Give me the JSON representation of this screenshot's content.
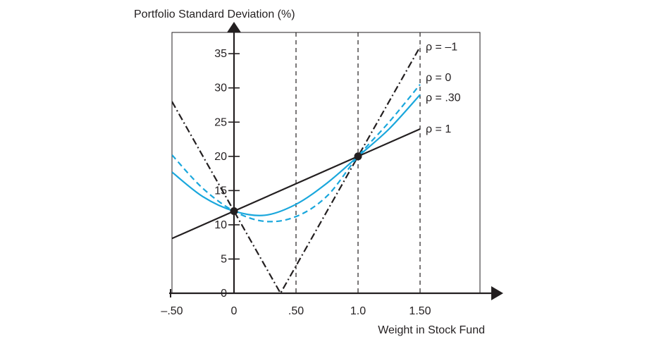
{
  "chart_data": {
    "type": "line",
    "ylabel": "Portfolio Standard Deviation (%)",
    "xlabel": "Weight in Stock Fund",
    "xlim": [
      -0.5,
      2.0
    ],
    "ylim": [
      0,
      40
    ],
    "x_ticks": [
      {
        "value": -0.5,
        "label": "–.50"
      },
      {
        "value": 0,
        "label": "0"
      },
      {
        "value": 0.5,
        "label": ".50"
      },
      {
        "value": 1.0,
        "label": "1.0"
      },
      {
        "value": 1.5,
        "label": "1.50"
      }
    ],
    "y_ticks": [
      {
        "value": 0,
        "label": "0"
      },
      {
        "value": 5,
        "label": "5"
      },
      {
        "value": 10,
        "label": "10"
      },
      {
        "value": 15,
        "label": "15"
      },
      {
        "value": 20,
        "label": "20"
      },
      {
        "value": 25,
        "label": "25"
      },
      {
        "value": 30,
        "label": "30"
      },
      {
        "value": 35,
        "label": "35"
      }
    ],
    "vertical_reference_lines": [
      0.5,
      1.0,
      1.5
    ],
    "grid": false,
    "series": [
      {
        "name": "ρ = –1",
        "color": "#231f20",
        "style": "dash-dot",
        "x": [
          -0.5,
          -0.25,
          0,
          0.25,
          0.375,
          0.5,
          0.75,
          1.0,
          1.25,
          1.5
        ],
        "y": [
          28,
          20,
          12,
          4,
          0,
          4,
          12,
          20,
          28,
          36
        ]
      },
      {
        "name": "ρ = 0",
        "color": "#1aa7dc",
        "style": "dashed",
        "x": [
          -0.5,
          -0.25,
          0,
          0.25,
          0.5,
          0.75,
          1.0,
          1.25,
          1.5
        ],
        "y": [
          20.2,
          15.3,
          12,
          10.5,
          11.2,
          14.2,
          20,
          25,
          30.5
        ]
      },
      {
        "name": "ρ = .30",
        "color": "#1aa7dc",
        "style": "solid",
        "x": [
          -0.5,
          -0.25,
          0,
          0.25,
          0.5,
          0.75,
          1.0,
          1.25,
          1.5
        ],
        "y": [
          17.7,
          14.1,
          12,
          11.4,
          13.0,
          16.1,
          20,
          24,
          29
        ]
      },
      {
        "name": "ρ = 1",
        "color": "#231f20",
        "style": "solid",
        "x": [
          -0.5,
          0,
          0.5,
          1.0,
          1.5
        ],
        "y": [
          8,
          12,
          16,
          20,
          24
        ]
      }
    ],
    "points": [
      {
        "x": 0,
        "y": 12
      },
      {
        "x": 1.0,
        "y": 20
      }
    ]
  }
}
